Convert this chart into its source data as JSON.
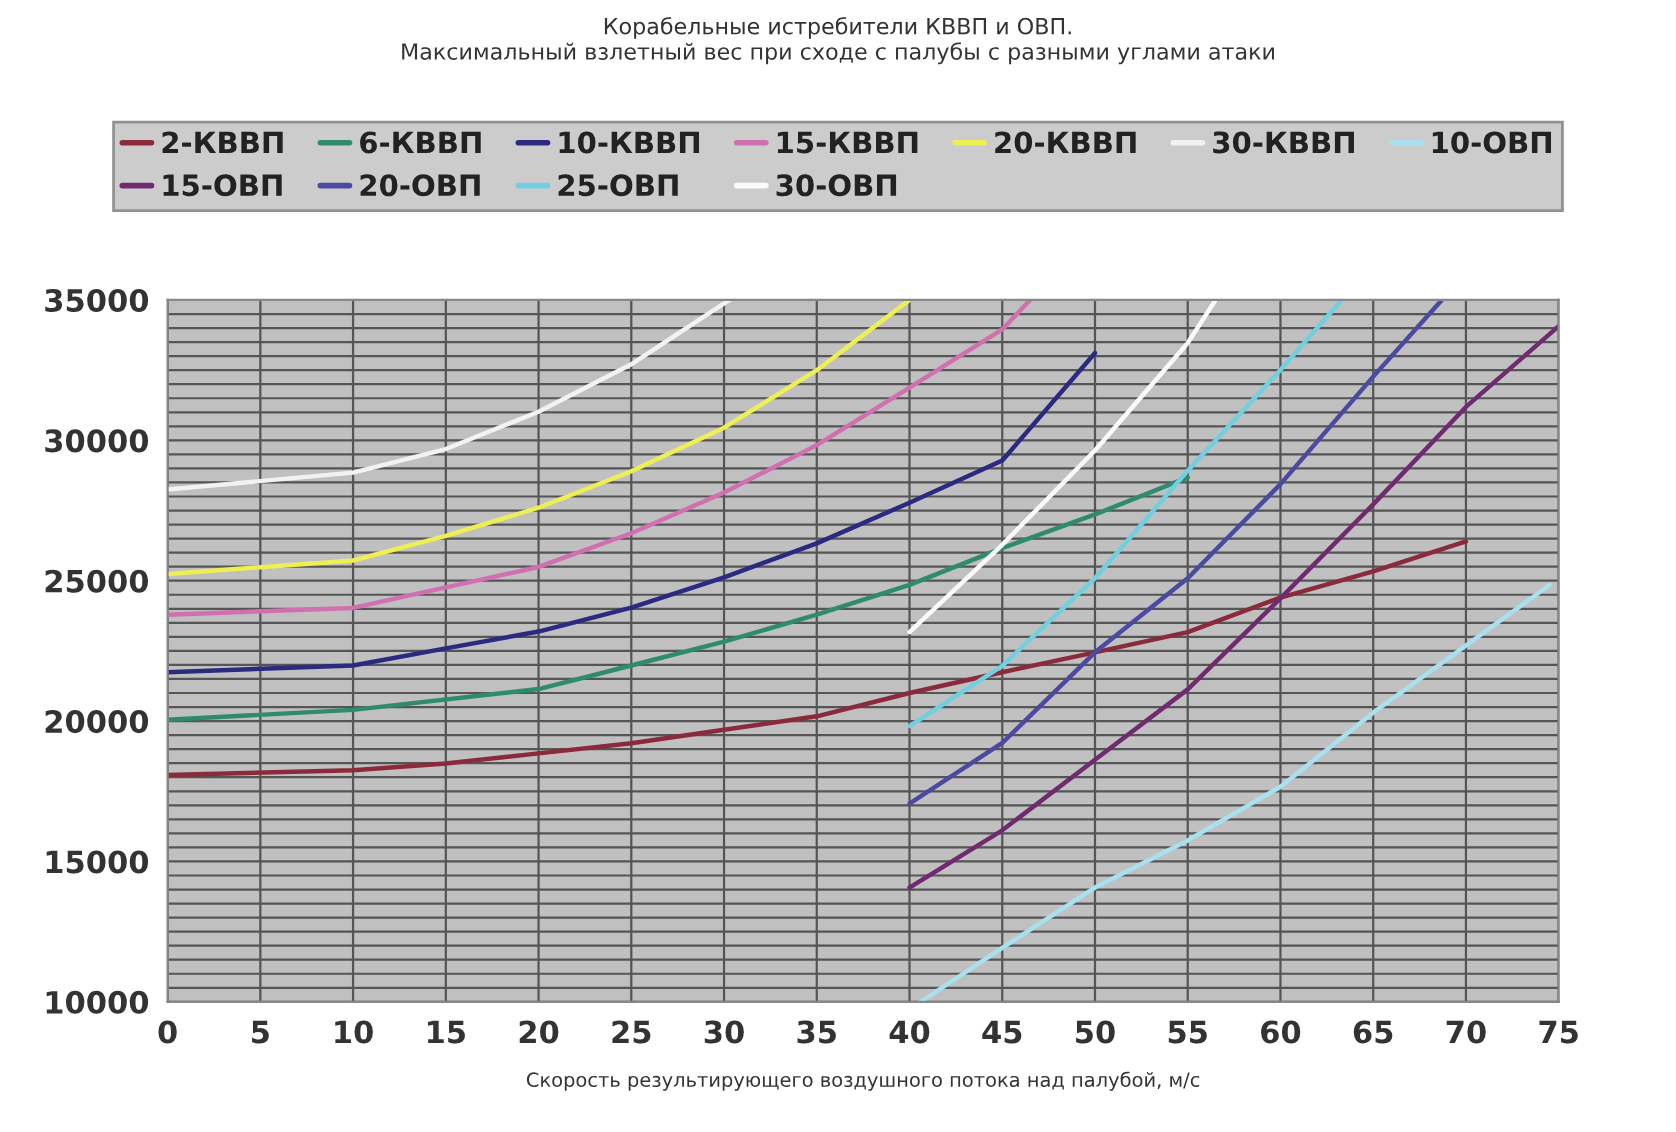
{
  "chart_data": {
    "type": "line",
    "title": "Корабельные истребители КВВП и ОВП.\nМаксимальный взлетный вес при сходе с палубы с разными углами атаки",
    "xlabel": "Скорость результирующего воздушного потока над палубой, м/с",
    "xlim": [
      0,
      75
    ],
    "xticks": [
      0,
      5,
      10,
      15,
      20,
      25,
      30,
      35,
      40,
      45,
      50,
      55,
      60,
      65,
      70,
      75
    ],
    "ylim": [
      10000,
      35000
    ],
    "yticks": [
      10000,
      {
        "value": 10500,
        "label": null
      },
      {
        "value": 11000,
        "label": null
      },
      {
        "value": 11500,
        "label": null
      },
      {
        "value": 12000,
        "label": null
      },
      {
        "value": 12500,
        "label": null
      },
      {
        "value": 13000,
        "label": null
      },
      {
        "value": 13500,
        "label": null
      },
      {
        "value": 14000,
        "label": null
      },
      {
        "value": 14500,
        "label": null
      },
      15000,
      {
        "value": 15500,
        "label": null
      },
      {
        "value": 16000,
        "label": null
      },
      {
        "value": 16500,
        "label": null
      },
      {
        "value": 17000,
        "label": null
      },
      {
        "value": 17500,
        "label": null
      },
      {
        "value": 18000,
        "label": null
      },
      {
        "value": 18500,
        "label": null
      },
      {
        "value": 19000,
        "label": null
      },
      {
        "value": 19500,
        "label": null
      },
      20000,
      {
        "value": 20500,
        "label": null
      },
      {
        "value": 21000,
        "label": null
      },
      {
        "value": 21500,
        "label": null
      },
      {
        "value": 22000,
        "label": null
      },
      {
        "value": 22500,
        "label": null
      },
      {
        "value": 23000,
        "label": null
      },
      {
        "value": 23500,
        "label": null
      },
      {
        "value": 24000,
        "label": null
      },
      {
        "value": 24500,
        "label": null
      },
      25000,
      {
        "value": 25500,
        "label": null
      },
      {
        "value": 26000,
        "label": null
      },
      {
        "value": 26500,
        "label": null
      },
      {
        "value": 27000,
        "label": null
      },
      {
        "value": 27500,
        "label": null
      },
      {
        "value": 28000,
        "label": null
      },
      {
        "value": 28500,
        "label": null
      },
      {
        "value": 29000,
        "label": null
      },
      {
        "value": 29500,
        "label": null
      },
      30000,
      {
        "value": 30500,
        "label": null
      },
      {
        "value": 31000,
        "label": null
      },
      {
        "value": 31500,
        "label": null
      },
      {
        "value": 32000,
        "label": null
      },
      {
        "value": 32500,
        "label": null
      },
      {
        "value": 33000,
        "label": null
      },
      {
        "value": 33500,
        "label": null
      },
      {
        "value": 34000,
        "label": null
      },
      {
        "value": 34500,
        "label": null
      },
      35000
    ],
    "grid": true,
    "legend": "top",
    "marker": "none",
    "line_style": "solid",
    "series": [
      {
        "name": "2-КВВП",
        "color": "#8b2a3a",
        "x": [
          0,
          10,
          15,
          20,
          25,
          30,
          35,
          40,
          45,
          50,
          55,
          60,
          65,
          70
        ],
        "values": [
          18080,
          18250,
          18490,
          18850,
          19210,
          19690,
          20170,
          21000,
          21740,
          22450,
          23170,
          24400,
          25330,
          26400
        ]
      },
      {
        "name": "6-КВВП",
        "color": "#2e8b6e",
        "x": [
          0,
          10,
          20,
          25,
          30,
          35,
          40,
          45,
          50,
          55
        ],
        "values": [
          20050,
          20400,
          21140,
          21980,
          22830,
          23790,
          24850,
          26160,
          27360,
          28680
        ]
      },
      {
        "name": "10-КВВП",
        "color": "#2a2a80",
        "x": [
          0,
          10,
          15,
          20,
          25,
          30,
          35,
          40,
          45,
          50
        ],
        "values": [
          21740,
          21980,
          22590,
          23190,
          24040,
          25120,
          26330,
          27780,
          29280,
          33110
        ]
      },
      {
        "name": "15-КВВП",
        "color": "#d070b0",
        "x": [
          0,
          10,
          15,
          20,
          25,
          30,
          35,
          40,
          45,
          46.5
        ],
        "values": [
          23790,
          24030,
          24760,
          25490,
          26690,
          28140,
          29830,
          31880,
          33950,
          35000
        ]
      },
      {
        "name": "20-КВВП",
        "color": "#eeee55",
        "x": [
          0,
          10,
          15,
          20,
          25,
          30,
          35,
          40
        ],
        "values": [
          25240,
          25720,
          26600,
          27600,
          28900,
          30450,
          32500,
          35000
        ]
      },
      {
        "name": "30-КВВП",
        "color": "#f2f2f2",
        "x": [
          0,
          10,
          15,
          20,
          25,
          30,
          30.3
        ],
        "values": [
          28250,
          28850,
          29690,
          31020,
          32710,
          34880,
          35000
        ]
      },
      {
        "name": "10-ОВП",
        "color": "#a8e0f0",
        "x": [
          40.6,
          45,
          50,
          55,
          60,
          65,
          70,
          74.5
        ],
        "values": [
          10000,
          11920,
          14070,
          15750,
          17660,
          20300,
          22690,
          24850
        ]
      },
      {
        "name": "15-ОВП",
        "color": "#702a70",
        "x": [
          40,
          45,
          50,
          55,
          60,
          65,
          70,
          75
        ],
        "values": [
          14070,
          16110,
          18620,
          21130,
          24370,
          27720,
          31190,
          34070
        ]
      },
      {
        "name": "20-ОВП",
        "color": "#4a4aa0",
        "x": [
          40,
          45,
          50,
          55,
          60,
          65,
          68.7
        ],
        "values": [
          17060,
          19220,
          22450,
          25090,
          28440,
          32270,
          35000
        ]
      },
      {
        "name": "25-ОВП",
        "color": "#70d0e0",
        "x": [
          40,
          45,
          50,
          55,
          60,
          63.3
        ],
        "values": [
          19820,
          21970,
          25090,
          28920,
          32510,
          35000
        ]
      },
      {
        "name": "30-ОВП",
        "color": "#fafafa",
        "x": [
          40,
          45,
          50,
          55,
          56.5
        ],
        "values": [
          23170,
          26280,
          29640,
          33470,
          35000
        ]
      }
    ]
  }
}
